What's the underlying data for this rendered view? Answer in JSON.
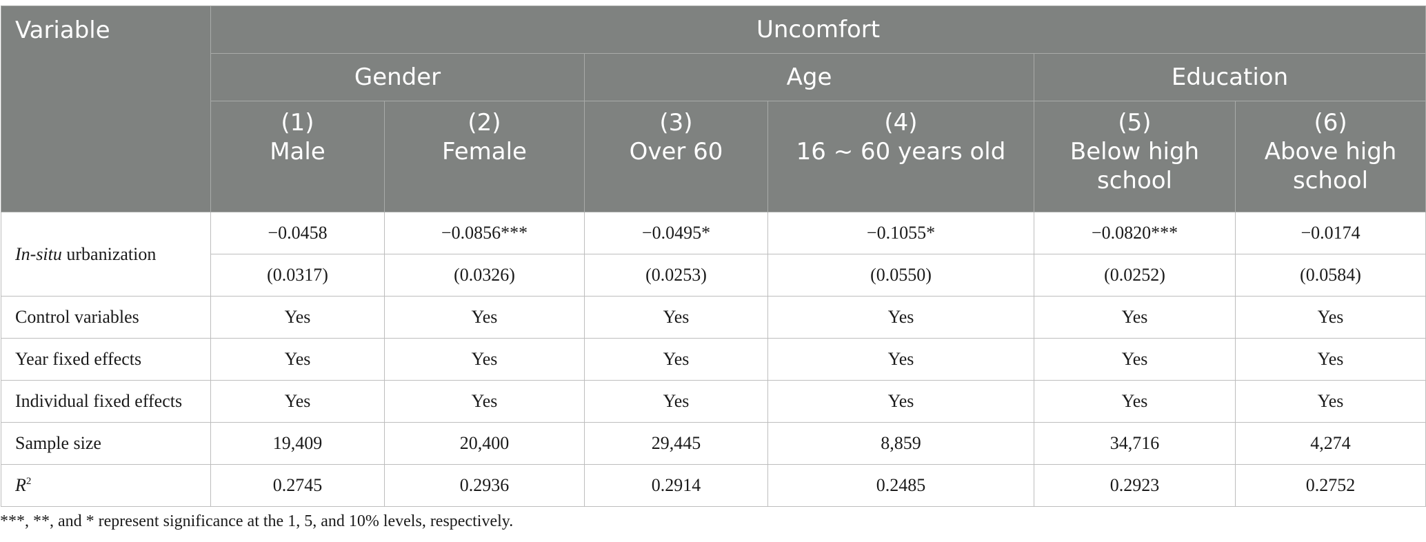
{
  "header": {
    "variable": "Variable",
    "outcome": "Uncomfort",
    "groups": [
      "Gender",
      "Age",
      "Education"
    ],
    "columns": [
      {
        "num": "(1)",
        "label": "Male"
      },
      {
        "num": "(2)",
        "label": "Female"
      },
      {
        "num": "(3)",
        "label": "Over 60"
      },
      {
        "num": "(4)",
        "label": "16 ~ 60 years old"
      },
      {
        "num": "(5)",
        "label": "Below high school"
      },
      {
        "num": "(6)",
        "label": "Above high school"
      }
    ]
  },
  "rows": {
    "urban": {
      "label_italic": "In-situ",
      "label_rest": " urbanization",
      "coef": [
        "−0.0458",
        "−0.0856***",
        "−0.0495*",
        "−0.1055*",
        "−0.0820***",
        "−0.0174"
      ],
      "se": [
        "(0.0317)",
        "(0.0326)",
        "(0.0253)",
        "(0.0550)",
        "(0.0252)",
        "(0.0584)"
      ]
    },
    "control": {
      "label": "Control variables",
      "values": [
        "Yes",
        "Yes",
        "Yes",
        "Yes",
        "Yes",
        "Yes"
      ]
    },
    "year_fe": {
      "label": "Year fixed effects",
      "values": [
        "Yes",
        "Yes",
        "Yes",
        "Yes",
        "Yes",
        "Yes"
      ]
    },
    "indiv_fe": {
      "label": "Individual fixed effects",
      "values": [
        "Yes",
        "Yes",
        "Yes",
        "Yes",
        "Yes",
        "Yes"
      ]
    },
    "sample": {
      "label": "Sample size",
      "values": [
        "19,409",
        "20,400",
        "29,445",
        "8,859",
        "34,716",
        "4,274"
      ]
    },
    "r2": {
      "label": "R",
      "sup": "2",
      "values": [
        "0.2745",
        "0.2936",
        "0.2914",
        "0.2485",
        "0.2923",
        "0.2752"
      ]
    }
  },
  "note": "***, **, and * represent significance at the 1, 5, and 10% levels, respectively."
}
